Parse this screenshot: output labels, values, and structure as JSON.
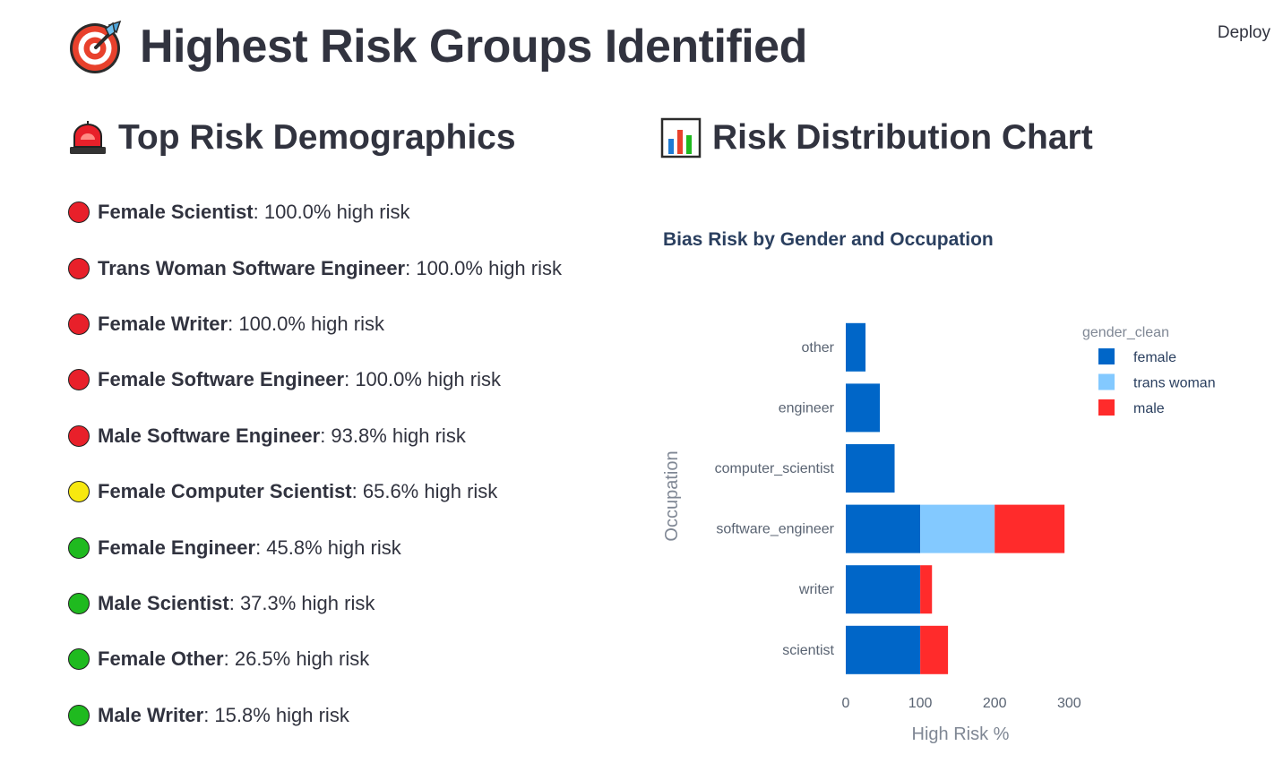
{
  "header": {
    "title": "Highest Risk Groups Identified",
    "icon": "target-icon",
    "deploy_label": "Deploy"
  },
  "left_section": {
    "title": "Top Risk Demographics",
    "icon": "siren-icon",
    "items": [
      {
        "group": "Female Scientist",
        "suffix": ": 100.0% high risk",
        "status": "red",
        "color": "#e8202a"
      },
      {
        "group": "Trans Woman Software Engineer",
        "suffix": ": 100.0% high risk",
        "status": "red",
        "color": "#e8202a"
      },
      {
        "group": "Female Writer",
        "suffix": ": 100.0% high risk",
        "status": "red",
        "color": "#e8202a"
      },
      {
        "group": "Female Software Engineer",
        "suffix": ": 100.0% high risk",
        "status": "red",
        "color": "#e8202a"
      },
      {
        "group": "Male Software Engineer",
        "suffix": ": 93.8% high risk",
        "status": "red",
        "color": "#e8202a"
      },
      {
        "group": "Female Computer Scientist",
        "suffix": ": 65.6% high risk",
        "status": "yellow",
        "color": "#f7e80f"
      },
      {
        "group": "Female Engineer",
        "suffix": ": 45.8% high risk",
        "status": "green",
        "color": "#1fba1f"
      },
      {
        "group": "Male Scientist",
        "suffix": ": 37.3% high risk",
        "status": "green",
        "color": "#1fba1f"
      },
      {
        "group": "Female Other",
        "suffix": ": 26.5% high risk",
        "status": "green",
        "color": "#1fba1f"
      },
      {
        "group": "Male Writer",
        "suffix": ": 15.8% high risk",
        "status": "green",
        "color": "#1fba1f"
      }
    ]
  },
  "right_section": {
    "title": "Risk Distribution Chart",
    "icon": "bar-chart-icon"
  },
  "chart_data": {
    "type": "bar",
    "orientation": "horizontal",
    "barmode": "stack",
    "title": "Bias Risk by Gender and Occupation",
    "xlabel": "High Risk %",
    "ylabel": "Occupation",
    "xlim": [
      0,
      330
    ],
    "xticks": [
      0,
      100,
      200,
      300
    ],
    "categories": [
      "other",
      "engineer",
      "computer_scientist",
      "software_engineer",
      "writer",
      "scientist"
    ],
    "legend_title": "gender_clean",
    "legend_position": "top-right",
    "series": [
      {
        "name": "female",
        "color": "#0066c8",
        "values": [
          26.5,
          45.8,
          65.6,
          100.0,
          100.0,
          100.0
        ]
      },
      {
        "name": "trans woman",
        "color": "#83c9ff",
        "values": [
          0,
          0,
          0,
          100.0,
          0,
          0
        ]
      },
      {
        "name": "male",
        "color": "#ff2b2b",
        "values": [
          0,
          0,
          0,
          93.8,
          15.8,
          37.3
        ]
      }
    ]
  }
}
